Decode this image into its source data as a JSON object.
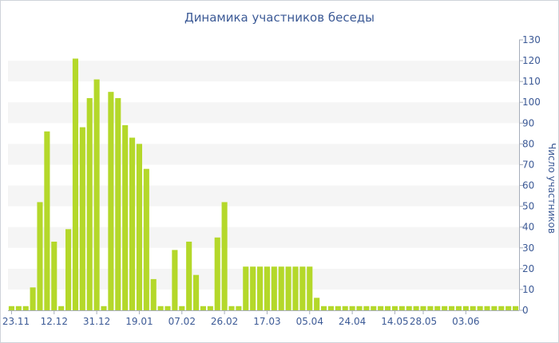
{
  "chart_data": {
    "type": "bar",
    "title": "Динамика участников беседы",
    "ylabel": "Число участников",
    "xlabel": "",
    "ylim": [
      0,
      130
    ],
    "yticks": [
      0,
      10,
      20,
      30,
      40,
      50,
      60,
      70,
      80,
      90,
      100,
      110,
      120,
      130
    ],
    "y_axis_side": "right",
    "grid": "alternating horizontal bands",
    "bar_color": "#b4d82a",
    "band_color": "#f5f5f5",
    "text_color": "#3c5a96",
    "x_tick_labels": [
      "23.11",
      "12.12",
      "31.12",
      "19.01",
      "07.02",
      "26.02",
      "17.03",
      "05.04",
      "24.04",
      "14.05",
      "28.05",
      "03.06"
    ],
    "x_tick_positions": [
      0,
      6,
      12,
      18,
      24,
      30,
      36,
      42,
      48,
      54,
      58,
      64
    ],
    "values": [
      2,
      2,
      2,
      11,
      52,
      86,
      33,
      2,
      39,
      121,
      88,
      102,
      111,
      2,
      105,
      102,
      89,
      83,
      80,
      68,
      15,
      2,
      2,
      29,
      2,
      33,
      17,
      2,
      2,
      35,
      52,
      2,
      2,
      21,
      21,
      21,
      21,
      21,
      21,
      21,
      21,
      21,
      21,
      6,
      2,
      2,
      2,
      2,
      2,
      2,
      2,
      2,
      2,
      2,
      2,
      2,
      2,
      2,
      2,
      2,
      2,
      2,
      2,
      2,
      2,
      2,
      2,
      2,
      2,
      2,
      2,
      2
    ]
  }
}
